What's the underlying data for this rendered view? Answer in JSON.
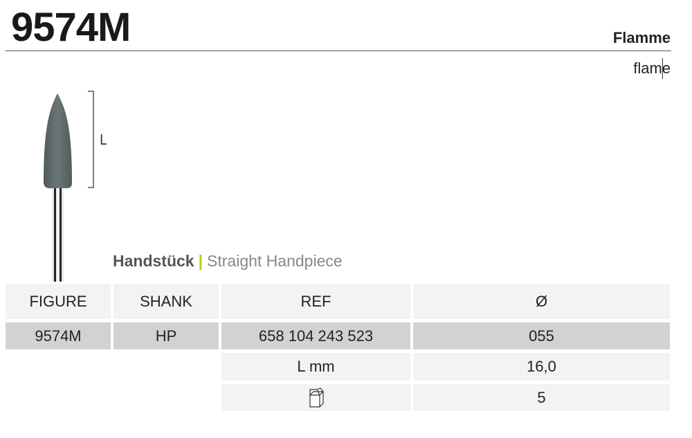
{
  "header": {
    "title": "9574M",
    "name_de": "Flamme",
    "name_en": "flame"
  },
  "handpiece": {
    "label_de": "Handstück",
    "separator": "|",
    "label_en": "Straight Handpiece"
  },
  "figure": {
    "dimension_label": "L"
  },
  "table": {
    "headers": [
      "FIGURE",
      "SHANK",
      "REF",
      "Ø"
    ],
    "row": [
      "9574M",
      "HP",
      "658 104 243 523",
      "055"
    ],
    "length": {
      "label": "L mm",
      "value": "16,0"
    },
    "package": {
      "icon": "box-icon",
      "value": "5"
    }
  },
  "colors": {
    "accent": "#b5cc18",
    "header_bg": "#f3f3f3",
    "row_bg": "#d1d2d4"
  }
}
